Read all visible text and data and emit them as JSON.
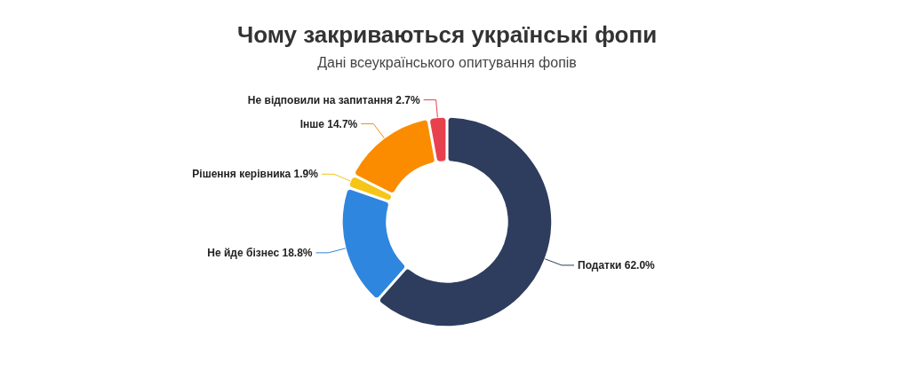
{
  "chart_data": {
    "type": "donut",
    "title": "Чому закриваються українські фопи",
    "subtitle": "Дані всеукраїнського опитування фопів",
    "categories": [
      "Податки",
      "Не йде бізнес",
      "Рішення керівника",
      "Інше",
      "Не відповили на запитання"
    ],
    "values": [
      62.0,
      18.8,
      1.9,
      14.7,
      2.7
    ],
    "value_labels": [
      "62.0%",
      "18.8%",
      "1.9%",
      "14.7%",
      "2.7%"
    ],
    "colors": [
      "#2e3d5e",
      "#2e86de",
      "#f5c518",
      "#fb8c00",
      "#e8414e"
    ]
  }
}
